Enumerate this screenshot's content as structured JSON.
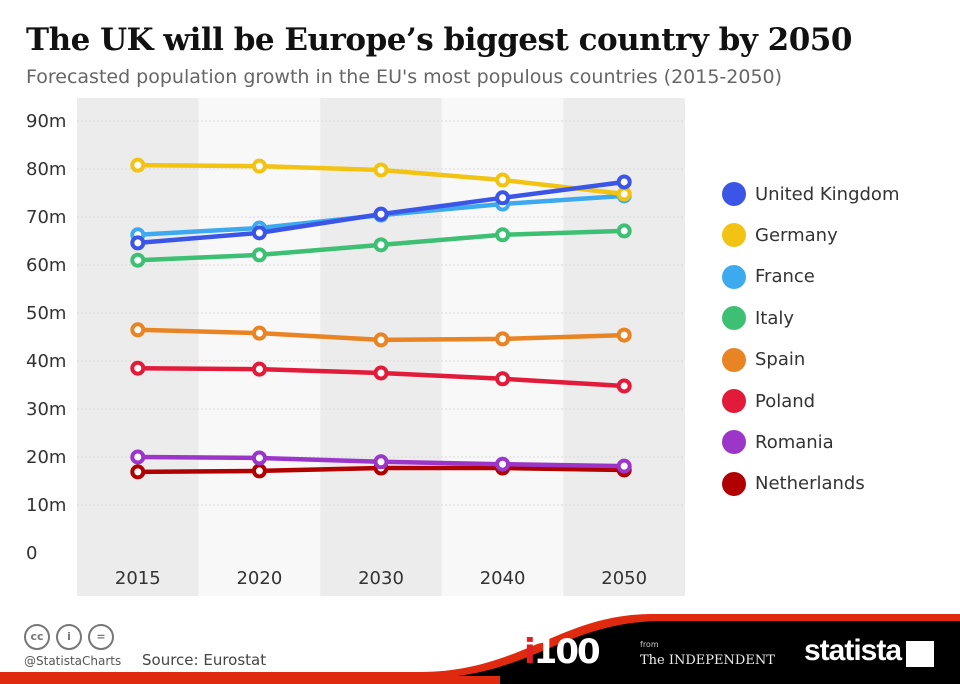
{
  "header": {
    "title": "The UK will be Europe’s biggest country by 2050",
    "subtitle": "Forecasted population growth in the EU's most populous countries (2015-2050)"
  },
  "chart_data": {
    "type": "line",
    "title": "The UK will be Europe’s biggest country by 2050",
    "subtitle": "Forecasted population growth in the EU's most populous countries (2015-2050)",
    "categories": [
      "2015",
      "2020",
      "2030",
      "2040",
      "2050"
    ],
    "ylim": [
      0,
      90
    ],
    "yticks": [
      {
        "v": 0,
        "label": "0"
      },
      {
        "v": 10,
        "label": "10m"
      },
      {
        "v": 20,
        "label": "20m"
      },
      {
        "v": 30,
        "label": "30m"
      },
      {
        "v": 40,
        "label": "40m"
      },
      {
        "v": 50,
        "label": "50m"
      },
      {
        "v": 60,
        "label": "60m"
      },
      {
        "v": 70,
        "label": "70m"
      },
      {
        "v": 80,
        "label": "80m"
      },
      {
        "v": 90,
        "label": "90m"
      }
    ],
    "grid": true,
    "legend_position": "right",
    "series": [
      {
        "name": "United Kingdom",
        "color": "#3b55e6",
        "values": [
          64.6,
          66.7,
          70.6,
          74.0,
          77.3
        ]
      },
      {
        "name": "Germany",
        "color": "#f2c313",
        "values": [
          80.8,
          80.6,
          79.8,
          77.7,
          74.8
        ]
      },
      {
        "name": "France",
        "color": "#3da9ef",
        "values": [
          66.3,
          67.7,
          70.4,
          72.7,
          74.4
        ]
      },
      {
        "name": "Italy",
        "color": "#3dbf74",
        "values": [
          61.0,
          62.1,
          64.2,
          66.3,
          67.1
        ]
      },
      {
        "name": "Spain",
        "color": "#e88423",
        "values": [
          46.5,
          45.8,
          44.4,
          44.6,
          45.4
        ]
      },
      {
        "name": "Poland",
        "color": "#e31b3a",
        "values": [
          38.5,
          38.3,
          37.5,
          36.3,
          34.8
        ]
      },
      {
        "name": "Romania",
        "color": "#9b36c8",
        "values": [
          20.0,
          19.8,
          19.0,
          18.5,
          18.1
        ]
      },
      {
        "name": "Netherlands",
        "color": "#b00000",
        "values": [
          16.9,
          17.1,
          17.7,
          17.7,
          17.3
        ]
      }
    ]
  },
  "footer": {
    "handle": "@StatistaCharts",
    "source": "Source: Eurostat",
    "logo_i100": "i100",
    "from": "from",
    "independent": "The INDEPENDENT",
    "statista": "statista",
    "cc_icons": [
      "cc",
      "by",
      "nd"
    ]
  }
}
